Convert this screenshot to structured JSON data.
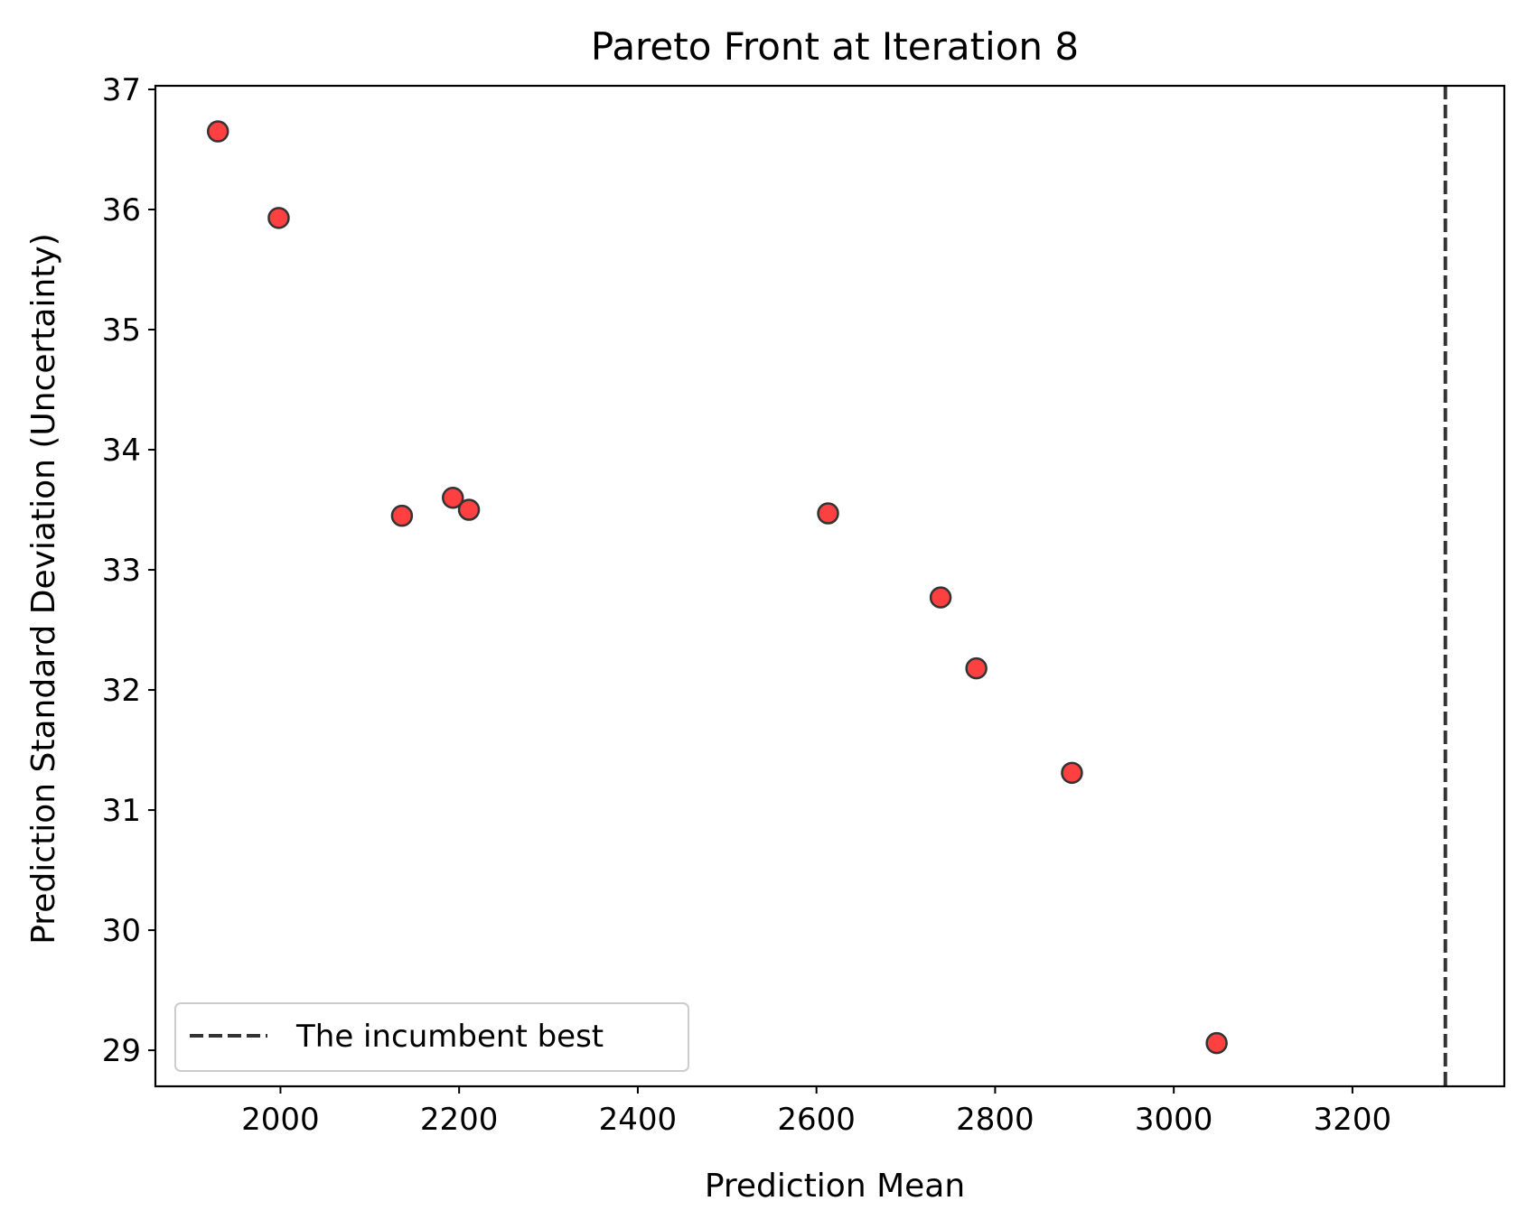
{
  "chart_data": {
    "type": "scatter",
    "title": "Pareto Front at Iteration 8",
    "xlabel": "Prediction Mean",
    "ylabel": "Prediction Standard Deviation (Uncertainty)",
    "xlim": [
      1860,
      3370
    ],
    "ylim": [
      28.7,
      37.03
    ],
    "xticks": [
      2000,
      2200,
      2400,
      2600,
      2800,
      3000,
      3200
    ],
    "yticks": [
      29,
      30,
      31,
      32,
      33,
      34,
      35,
      36,
      37
    ],
    "grid": false,
    "legend_position": "bottom-left",
    "series": [
      {
        "type": "scatter",
        "color": "#ff0000",
        "edge_color": "#333333",
        "x": [
          1930,
          1998,
          2136,
          2193,
          2211,
          2613,
          2739,
          2779,
          2886,
          3048
        ],
        "y": [
          36.65,
          35.93,
          33.45,
          33.6,
          33.5,
          33.47,
          32.77,
          32.18,
          31.31,
          29.06
        ]
      },
      {
        "type": "vline",
        "name": "The incumbent best",
        "color": "#333333",
        "style": "dashed",
        "x": 3304
      }
    ]
  }
}
